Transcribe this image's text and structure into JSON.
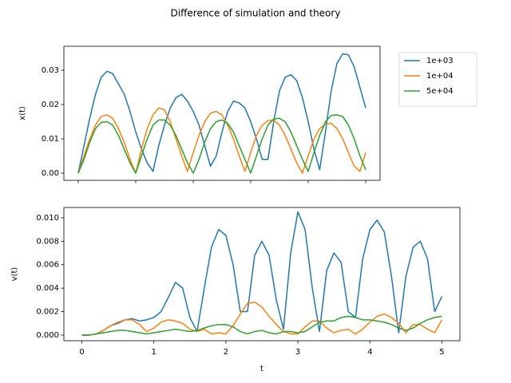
{
  "title": "Difference of simulation and theory",
  "chart_data": [
    {
      "type": "line",
      "ylabel": "x(t)",
      "xlim": [
        -0.25,
        5.25
      ],
      "ylim": [
        -0.0021,
        0.037
      ],
      "xticks": [
        0,
        1,
        2,
        3,
        4,
        5
      ],
      "show_xticklabels": false,
      "yticks": [
        {
          "value": 0,
          "label": "0.00"
        },
        {
          "value": 0.01,
          "label": "0.01"
        },
        {
          "value": 0.02,
          "label": "0.02"
        },
        {
          "value": 0.03,
          "label": "0.03"
        }
      ],
      "legend": "outside upper right",
      "x": [
        0,
        0.1,
        0.2,
        0.3,
        0.4,
        0.5,
        0.6,
        0.7,
        0.8,
        0.9,
        1,
        1.1,
        1.2,
        1.3,
        1.4,
        1.5,
        1.6,
        1.7,
        1.8,
        1.9,
        2,
        2.1,
        2.2,
        2.3,
        2.4,
        2.5,
        2.6,
        2.7,
        2.8,
        2.9,
        3,
        3.1,
        3.2,
        3.3,
        3.4,
        3.5,
        3.6,
        3.7,
        3.8,
        3.9,
        4,
        4.1,
        4.2,
        4.3,
        4.4,
        4.5,
        4.6,
        4.7,
        4.8,
        4.9,
        5
      ],
      "series": [
        {
          "name": "1e+03",
          "color": "#1f77b4",
          "values": [
            0,
            0.008,
            0.016,
            0.023,
            0.028,
            0.0297,
            0.029,
            0.026,
            0.023,
            0.018,
            0.012,
            0.007,
            0.003,
            0.0005,
            0.008,
            0.014,
            0.019,
            0.022,
            0.023,
            0.021,
            0.018,
            0.014,
            0.008,
            0.002,
            0.005,
            0.012,
            0.018,
            0.021,
            0.0205,
            0.019,
            0.015,
            0.01,
            0.004,
            0.004,
            0.015,
            0.024,
            0.028,
            0.0287,
            0.027,
            0.022,
            0.015,
            0.007,
            0.001,
            0.012,
            0.024,
            0.032,
            0.0348,
            0.0345,
            0.031,
            0.025,
            0.019
          ]
        },
        {
          "name": "1e+04",
          "color": "#ff7f0e",
          "values": [
            0,
            0.005,
            0.01,
            0.014,
            0.0165,
            0.017,
            0.016,
            0.013,
            0.009,
            0.004,
            0,
            0.007,
            0.013,
            0.017,
            0.019,
            0.0185,
            0.015,
            0.01,
            0.005,
            0.0005,
            0.006,
            0.011,
            0.015,
            0.0175,
            0.018,
            0.017,
            0.014,
            0.01,
            0.005,
            0.0005,
            0.006,
            0.011,
            0.014,
            0.0153,
            0.0155,
            0.014,
            0.011,
            0.007,
            0.003,
            0,
            0.005,
            0.01,
            0.013,
            0.0143,
            0.0145,
            0.013,
            0.01,
            0.006,
            0.002,
            0.0005,
            0.006
          ]
        },
        {
          "name": "5e+04",
          "color": "#2ca02c",
          "values": [
            0,
            0.004,
            0.009,
            0.013,
            0.0148,
            0.015,
            0.014,
            0.011,
            0.007,
            0.003,
            0,
            0.005,
            0.01,
            0.014,
            0.0155,
            0.0155,
            0.014,
            0.011,
            0.007,
            0.003,
            0,
            0.004,
            0.009,
            0.013,
            0.015,
            0.0155,
            0.0145,
            0.012,
            0.008,
            0.004,
            0,
            0.005,
            0.01,
            0.014,
            0.0158,
            0.016,
            0.015,
            0.012,
            0.008,
            0.004,
            0.0005,
            0.006,
            0.011,
            0.015,
            0.0168,
            0.017,
            0.0165,
            0.014,
            0.01,
            0.005,
            0.001
          ]
        }
      ]
    },
    {
      "type": "line",
      "ylabel": "v(t)",
      "xlabel": "t",
      "xlim": [
        -0.25,
        5.25
      ],
      "ylim": [
        -0.00048,
        0.01088
      ],
      "xticks": [
        0,
        1,
        2,
        3,
        4,
        5
      ],
      "show_xticklabels": true,
      "yticks": [
        {
          "value": 0,
          "label": "0.000"
        },
        {
          "value": 0.002,
          "label": "0.002"
        },
        {
          "value": 0.004,
          "label": "0.004"
        },
        {
          "value": 0.006,
          "label": "0.006"
        },
        {
          "value": 0.008,
          "label": "0.008"
        },
        {
          "value": 0.01,
          "label": "0.010"
        }
      ],
      "x": [
        0,
        0.1,
        0.2,
        0.3,
        0.4,
        0.5,
        0.6,
        0.7,
        0.8,
        0.9,
        1,
        1.1,
        1.2,
        1.3,
        1.4,
        1.5,
        1.6,
        1.7,
        1.8,
        1.9,
        2,
        2.1,
        2.2,
        2.3,
        2.4,
        2.5,
        2.6,
        2.7,
        2.8,
        2.9,
        3,
        3.1,
        3.2,
        3.3,
        3.4,
        3.5,
        3.6,
        3.7,
        3.8,
        3.9,
        4,
        4.1,
        4.2,
        4.3,
        4.4,
        4.5,
        4.6,
        4.7,
        4.8,
        4.9,
        5
      ],
      "series": [
        {
          "color": "#1f77b4",
          "values": [
            0,
            0,
            0.0001,
            0.0004,
            0.0008,
            0.001,
            0.0013,
            0.0014,
            0.0012,
            0.0013,
            0.0015,
            0.002,
            0.0032,
            0.0045,
            0.004,
            0.0015,
            0.0003,
            0.004,
            0.0075,
            0.009,
            0.0085,
            0.006,
            0.002,
            0.002,
            0.0068,
            0.008,
            0.0068,
            0.003,
            0.0005,
            0.007,
            0.0105,
            0.009,
            0.004,
            0.0003,
            0.0055,
            0.007,
            0.0062,
            0.002,
            0.0015,
            0.0065,
            0.009,
            0.0098,
            0.0088,
            0.005,
            0.0002,
            0.005,
            0.0075,
            0.008,
            0.0065,
            0.002,
            0.0033
          ]
        },
        {
          "color": "#ff7f0e",
          "values": [
            0,
            0,
            0.0001,
            0.0004,
            0.0008,
            0.0011,
            0.0013,
            0.0013,
            0.0009,
            0.0003,
            0.0006,
            0.0011,
            0.0013,
            0.0012,
            0.001,
            0.0005,
            0.0003,
            0.0005,
            0.0001,
            0.0002,
            0.0001,
            0.0008,
            0.0018,
            0.0027,
            0.0028,
            0.0024,
            0.0016,
            0.0009,
            0.0003,
            0.0001,
            0.0001,
            0.0007,
            0.0012,
            0.0012,
            0.0006,
            0.0002,
            0.0004,
            0.0005,
            0.0001,
            0.0005,
            0.0011,
            0.0016,
            0.0018,
            0.0015,
            0.001,
            0.0002,
            0.0009,
            0.0009,
            0.0005,
            0.0002,
            0.0013
          ]
        },
        {
          "color": "#2ca02c",
          "values": [
            0,
            0,
            0.0001,
            0.0002,
            0.0003,
            0.0004,
            0.0004,
            0.0003,
            0.0002,
            0.0001,
            0.0002,
            0.0003,
            0.0004,
            0.0005,
            0.0004,
            0.0003,
            0.0004,
            0.0006,
            0.0008,
            0.0009,
            0.0009,
            0.0007,
            0.0003,
            0.0001,
            0.0003,
            0.0004,
            0.0002,
            0.0001,
            0.0003,
            0.0003,
            0.0002,
            0.0003,
            0.0007,
            0.0011,
            0.0012,
            0.0012,
            0.0015,
            0.0016,
            0.0015,
            0.0013,
            0.0013,
            0.0012,
            0.0011,
            0.0009,
            0.0006,
            0.0004,
            0.0006,
            0.001,
            0.0013,
            0.0015,
            0.0016
          ]
        }
      ]
    }
  ]
}
